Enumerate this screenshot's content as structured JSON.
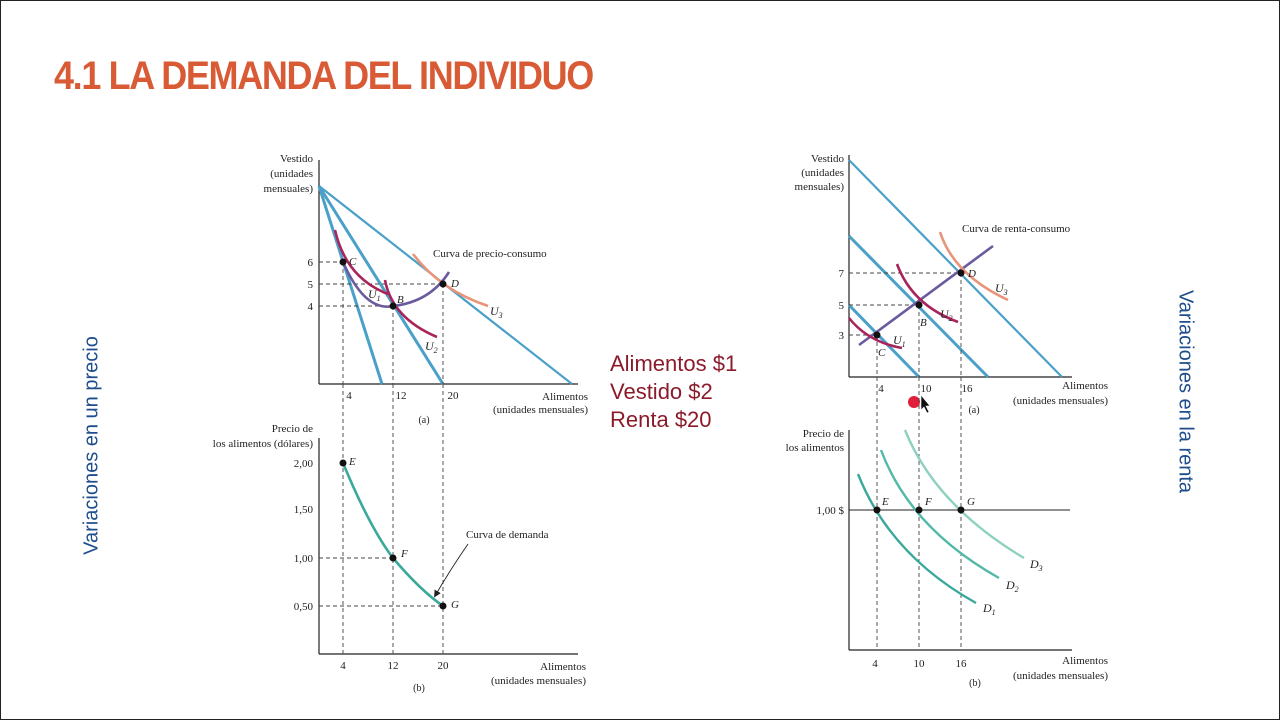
{
  "slide": {
    "title": "4.1 LA DEMANDA DEL INDIVIDUO",
    "left_side_label": "Variaciones en un precio",
    "right_side_label": "Variaciones en la renta",
    "prices": [
      "Alimentos $1",
      "Vestido $2",
      "Renta $20"
    ]
  },
  "colors": {
    "title": "#d95b36",
    "side_labels": "#1f4e8c",
    "prices": "#8b1a2b",
    "budget_lines": "#4aa0c8",
    "expansion_curve": "#6b5a9e",
    "u1": "#a8245a",
    "u2": "#a8245a",
    "u3": "#e8947a",
    "demand": "#3aa89a"
  },
  "left_top": {
    "y_title": [
      "Vestido",
      "(unidades",
      "mensuales)"
    ],
    "y_ticks": [
      "6",
      "5",
      "4"
    ],
    "x_ticks": [
      "4",
      "12",
      "20"
    ],
    "x_title": [
      "Alimentos",
      "(unidades mensuales)"
    ],
    "panel": "(a)",
    "curve_label": "Curva de precio-consumo",
    "points": [
      "C",
      "B",
      "D"
    ],
    "curves": [
      "U",
      "U",
      "U"
    ],
    "curve_subs": [
      "1",
      "2",
      "3"
    ]
  },
  "left_bottom": {
    "y_title": [
      "Precio de",
      "los alimentos (dólares)"
    ],
    "y_ticks": [
      "2,00",
      "1,50",
      "1,00",
      "0,50"
    ],
    "x_ticks": [
      "4",
      "12",
      "20"
    ],
    "x_title": [
      "Alimentos",
      "(unidades mensuales)"
    ],
    "panel": "(b)",
    "curve_label": "Curva de demanda",
    "points": [
      "E",
      "F",
      "G"
    ]
  },
  "right_top": {
    "y_title": [
      "Vestido",
      "(unidades",
      "mensuales)"
    ],
    "y_ticks": [
      "7",
      "5",
      "3"
    ],
    "x_ticks": [
      "4",
      "10",
      "16"
    ],
    "x_title": [
      "Alimentos",
      "(unidades mensuales)"
    ],
    "panel": "(a)",
    "curve_label": "Curva de renta-consumo",
    "points": [
      "C",
      "B",
      "D"
    ],
    "curves": [
      "U",
      "U",
      "U"
    ],
    "curve_subs": [
      "1",
      "2",
      "3"
    ]
  },
  "right_bottom": {
    "y_title": [
      "Precio de",
      "los alimentos"
    ],
    "y_ticks": [
      "1,00 $"
    ],
    "x_ticks": [
      "4",
      "10",
      "16"
    ],
    "x_title": [
      "Alimentos",
      "(unidades mensuales)"
    ],
    "panel": "(b)",
    "points": [
      "E",
      "F",
      "G"
    ],
    "curves": [
      "D",
      "D",
      "D"
    ],
    "curve_subs": [
      "1",
      "2",
      "3"
    ]
  }
}
